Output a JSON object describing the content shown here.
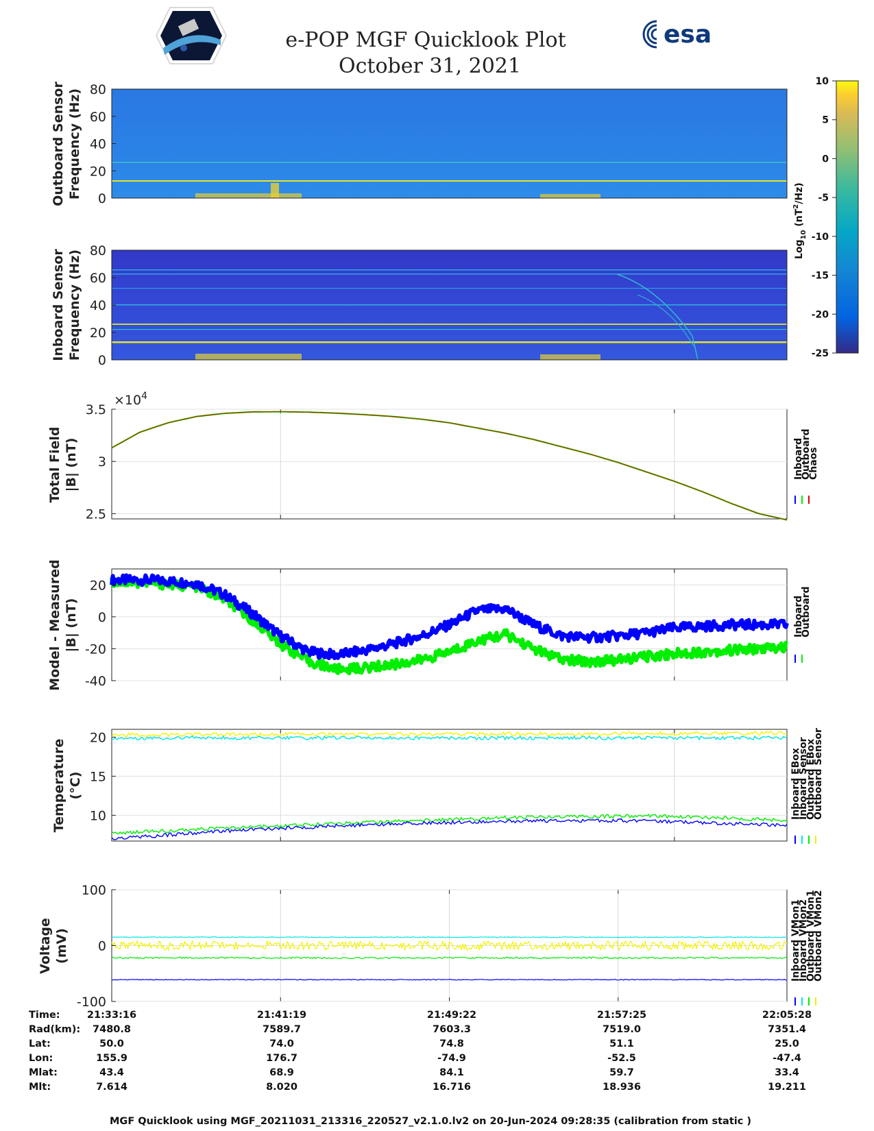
{
  "header": {
    "title": "e-POP MGF Quicklook Plot",
    "date": "October 31, 2021",
    "esa_logo": "esa"
  },
  "colorbar": {
    "label_main": "Log",
    "label_sub": "10",
    "label_unit": "(nT",
    "label_exp": "2",
    "label_tail": "/Hz)",
    "ticks": [
      "10",
      "5",
      "0",
      "-5",
      "-10",
      "-15",
      "-20",
      "-25"
    ]
  },
  "colors": {
    "inboard": "#0000ff",
    "outboard": "#00ee00",
    "chaos": "#e00000",
    "cyan": "#00e5e5",
    "yellow": "#f2f200"
  },
  "chart_data": [
    {
      "type": "heatmap",
      "name": "Outboard Sensor spectrogram",
      "ylabel_line1": "Outboard Sensor",
      "ylabel_line2": "Frequency (Hz)",
      "ylim": [
        0,
        80
      ],
      "yticks": [
        "80",
        "60",
        "40",
        "20",
        "0"
      ],
      "lines_hz": [
        13,
        25.5
      ],
      "activity": [
        "21:36:00-21:41:30 (0-8 Hz)",
        "21:52:00-21:55:00 (0-6 Hz)"
      ]
    },
    {
      "type": "heatmap",
      "name": "Inboard Sensor spectrogram",
      "ylabel_line1": "Inboard Sensor",
      "ylabel_line2": "Frequency (Hz)",
      "ylim": [
        0,
        80
      ],
      "yticks": [
        "80",
        "60",
        "40",
        "20",
        "0"
      ],
      "lines_hz": [
        13,
        25.5,
        40,
        52,
        63,
        66
      ]
    },
    {
      "type": "line",
      "name": "Total Field",
      "ylabel_line1": "Total Field",
      "ylabel_line2": "|B| (nT)",
      "exponent_label": "×10",
      "exponent_power": "4",
      "ylim": [
        2.45,
        3.5
      ],
      "yticks": [
        "3.5",
        "3",
        "2.5"
      ],
      "ytick_values": [
        3.5,
        3.0,
        2.5
      ],
      "legend": [
        "Inboard",
        "Outboard",
        "Chaos"
      ],
      "series": [
        {
          "name": "Chaos",
          "x_min": [
            0,
            2,
            4,
            6,
            8,
            10,
            12,
            14,
            16,
            18,
            20,
            22,
            24,
            26,
            28,
            30,
            32,
            34,
            36,
            38,
            40,
            42,
            44,
            46,
            48
          ],
          "values": [
            3.13,
            3.28,
            3.37,
            3.43,
            3.46,
            3.474,
            3.476,
            3.472,
            3.462,
            3.448,
            3.43,
            3.405,
            3.37,
            3.32,
            3.27,
            3.21,
            3.14,
            3.07,
            2.99,
            2.9,
            2.81,
            2.71,
            2.6,
            2.5,
            2.44
          ]
        }
      ]
    },
    {
      "type": "line",
      "name": "Model - Measured",
      "ylabel_line1": "Model - Measured",
      "ylabel_line2": "|B| (nT)",
      "ylim": [
        -40,
        30
      ],
      "yticks": [
        "20",
        "0",
        "-20",
        "-40"
      ],
      "ytick_values": [
        20,
        0,
        -20,
        -40
      ],
      "legend": [
        "Inboard",
        "Outboard"
      ],
      "series": [
        {
          "name": "Inboard",
          "x_min": [
            0,
            3,
            6,
            8,
            10,
            12,
            14,
            16,
            18,
            20,
            22,
            24,
            26,
            28,
            30,
            32,
            34,
            36,
            38,
            40,
            42,
            44,
            46,
            48
          ],
          "values": [
            23,
            23,
            21,
            14,
            2,
            -12,
            -22,
            -24,
            -21,
            -17,
            -12,
            -5,
            4,
            5,
            -5,
            -12,
            -13,
            -12,
            -10,
            -7,
            -6,
            -5,
            -5,
            -5
          ]
        },
        {
          "name": "Outboard",
          "x_min": [
            0,
            3,
            6,
            8,
            10,
            12,
            14,
            16,
            18,
            20,
            22,
            24,
            26,
            28,
            30,
            32,
            34,
            36,
            38,
            40,
            42,
            44,
            46,
            48
          ],
          "values": [
            22,
            21,
            19,
            11,
            -2,
            -17,
            -28,
            -33,
            -32,
            -30,
            -27,
            -22,
            -15,
            -11,
            -20,
            -27,
            -28,
            -27,
            -25,
            -23,
            -22,
            -21,
            -20,
            -19
          ]
        }
      ]
    },
    {
      "type": "line",
      "name": "Temperature",
      "ylabel_line1": "Temperature",
      "ylabel_line2": "(°C)",
      "ylim": [
        6.7,
        21
      ],
      "yticks": [
        "20",
        "15",
        "10"
      ],
      "ytick_values": [
        20,
        15,
        10
      ],
      "legend": [
        "Inboard EBox",
        "Inboard Sensor",
        "Outboard EBox",
        "Outboard Sensor"
      ],
      "series": [
        {
          "name": "Outboard Sensor",
          "x_min": [
            0,
            48
          ],
          "values": [
            20.3,
            20.5
          ]
        },
        {
          "name": "Outboard EBox",
          "x_min": [
            0,
            48
          ],
          "values": [
            19.9,
            19.9
          ]
        },
        {
          "name": "Inboard Sensor",
          "x_min": [
            0,
            10,
            20,
            30,
            38,
            43,
            48
          ],
          "values": [
            7.7,
            8.5,
            9.2,
            9.8,
            9.9,
            9.7,
            9.3
          ]
        },
        {
          "name": "Inboard EBox",
          "x_min": [
            0,
            10,
            20,
            30,
            38,
            43,
            48
          ],
          "values": [
            7.0,
            8.2,
            8.9,
            9.3,
            9.3,
            9.0,
            8.7
          ]
        }
      ]
    },
    {
      "type": "line",
      "name": "Voltage",
      "ylabel_line1": "Voltage",
      "ylabel_line2": "(mV)",
      "ylim": [
        -100,
        100
      ],
      "yticks": [
        "100",
        "0",
        "-100"
      ],
      "ytick_values": [
        100,
        0,
        -100
      ],
      "legend": [
        "Inboard VMon1",
        "Inboard VMon2",
        "Outboard VMon1",
        "Outboard VMon2"
      ],
      "series": [
        {
          "name": "Inboard VMon2",
          "x_min": [
            0,
            48
          ],
          "values": [
            15,
            15
          ]
        },
        {
          "name": "Outboard VMon2",
          "x_min": [
            0,
            48
          ],
          "values": [
            0,
            0
          ]
        },
        {
          "name": "Outboard VMon1",
          "x_min": [
            0,
            48
          ],
          "values": [
            -22,
            -22
          ]
        },
        {
          "name": "Inboard VMon1",
          "x_min": [
            0,
            48
          ],
          "values": [
            -61,
            -61
          ]
        }
      ]
    }
  ],
  "orbit_table": {
    "row_labels": [
      "Time:",
      "Rad(km):",
      "Lat:",
      "Lon:",
      "Mlat:",
      "Mlt:"
    ],
    "columns": [
      [
        "21:33:16",
        "7480.8",
        "50.0",
        "155.9",
        "43.4",
        "7.614"
      ],
      [
        "21:41:19",
        "7589.7",
        "74.0",
        "176.7",
        "68.9",
        "8.020"
      ],
      [
        "21:49:22",
        "7603.3",
        "74.8",
        "-74.9",
        "84.1",
        "16.716"
      ],
      [
        "21:57:25",
        "7519.0",
        "51.1",
        "-52.5",
        "59.7",
        "18.936"
      ],
      [
        "22:05:28",
        "7351.4",
        "25.0",
        "-47.4",
        "33.4",
        "19.211"
      ]
    ]
  },
  "footer": "MGF Quicklook using MGF_20211031_213316_220527_v2.1.0.lv2 on 20-Jun-2024 09:28:35 (calibration from static )"
}
